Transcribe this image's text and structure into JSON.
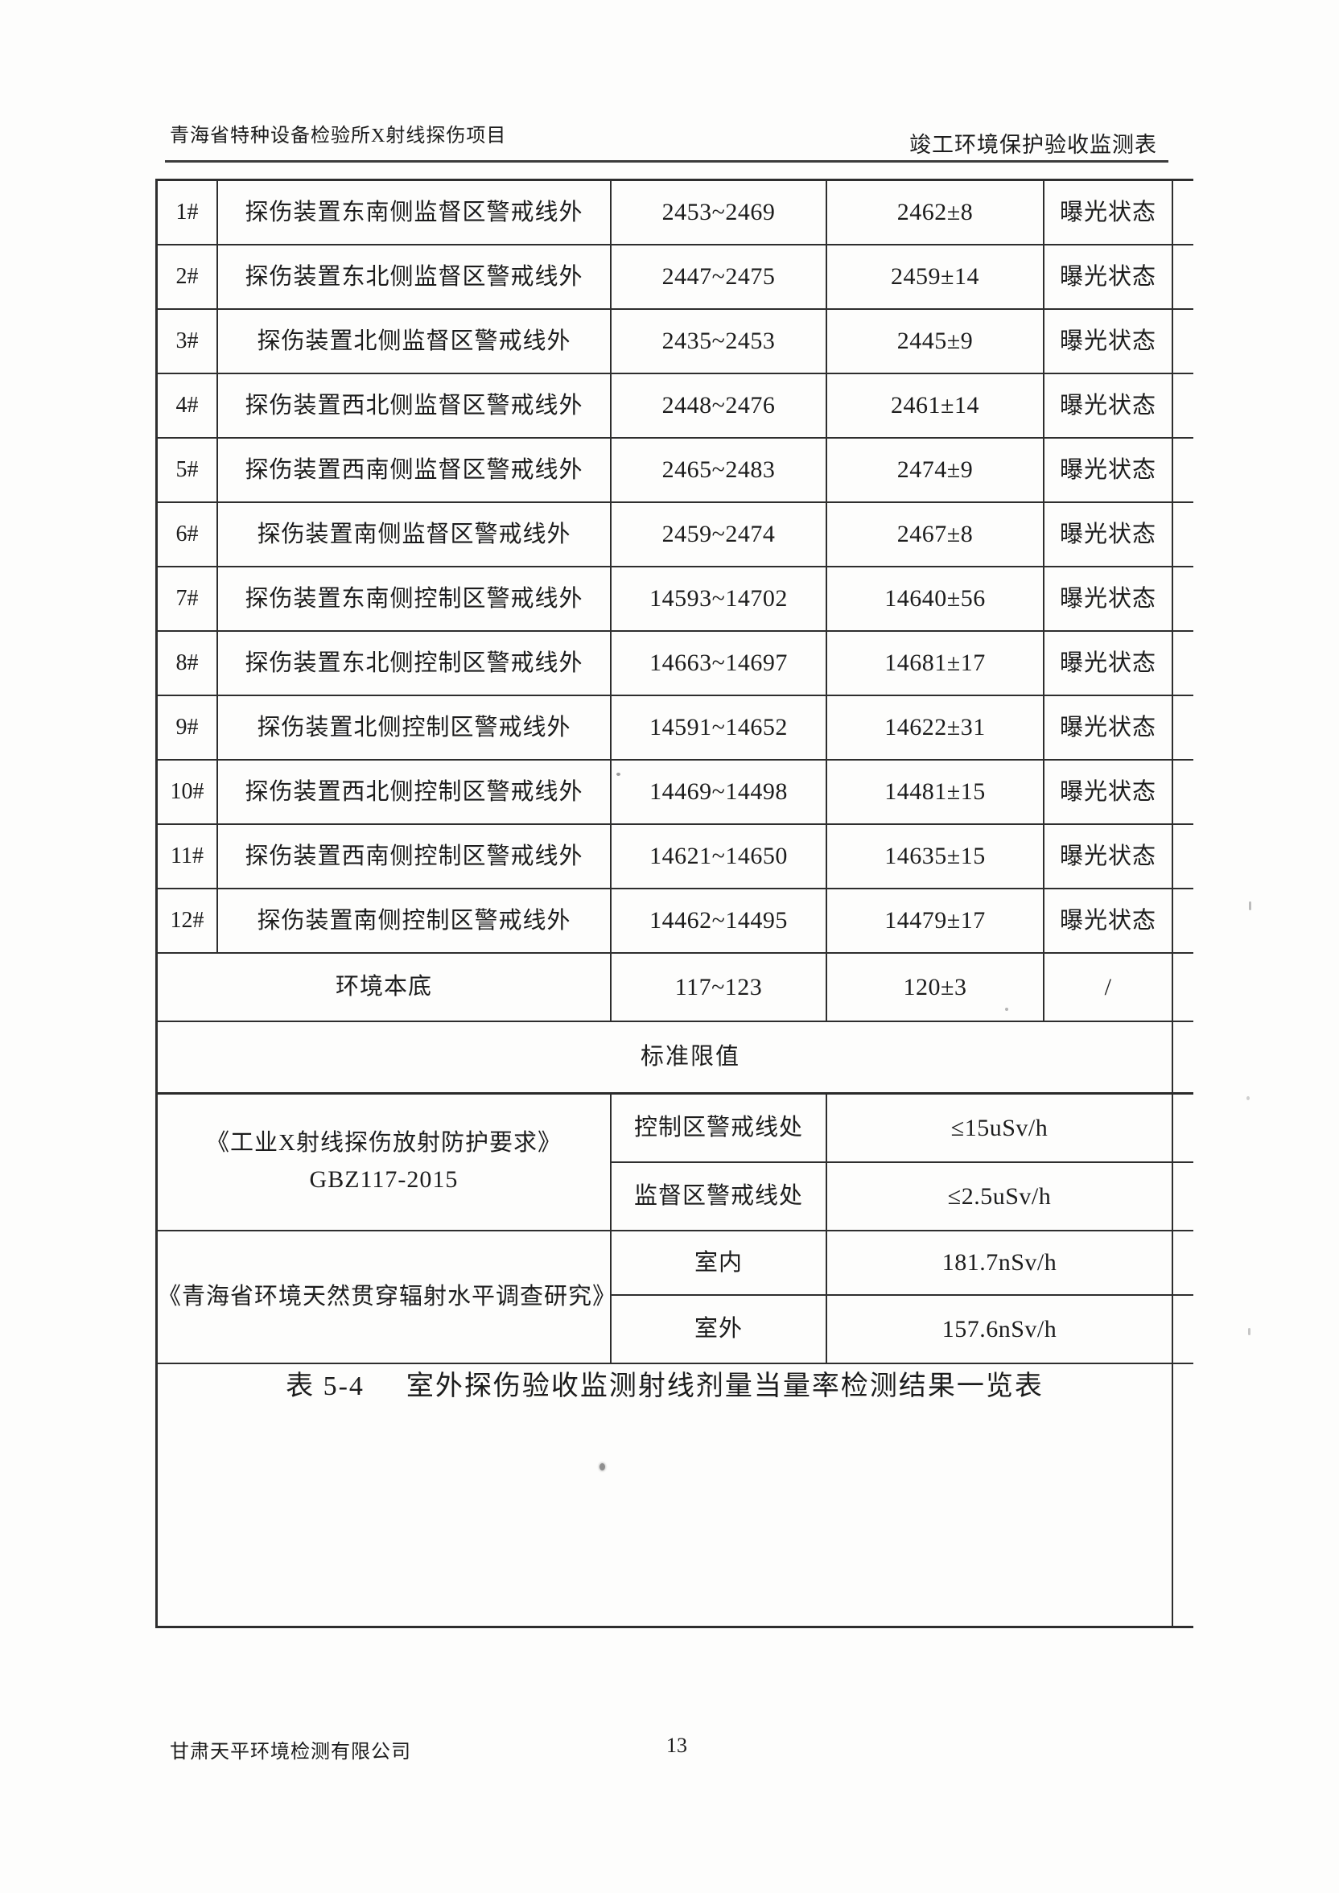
{
  "header": {
    "left_title": "青海省特种设备检验所X射线探伤项目",
    "right_title": "竣工环境保护验收监测表"
  },
  "table": {
    "rows": [
      {
        "id": "1#",
        "location": "探伤装置东南侧监督区警戒线外",
        "range": "2453~2469",
        "average": "2462±8",
        "status": "曝光状态"
      },
      {
        "id": "2#",
        "location": "探伤装置东北侧监督区警戒线外",
        "range": "2447~2475",
        "average": "2459±14",
        "status": "曝光状态"
      },
      {
        "id": "3#",
        "location": "探伤装置北侧监督区警戒线外",
        "range": "2435~2453",
        "average": "2445±9",
        "status": "曝光状态"
      },
      {
        "id": "4#",
        "location": "探伤装置西北侧监督区警戒线外",
        "range": "2448~2476",
        "average": "2461±14",
        "status": "曝光状态"
      },
      {
        "id": "5#",
        "location": "探伤装置西南侧监督区警戒线外",
        "range": "2465~2483",
        "average": "2474±9",
        "status": "曝光状态"
      },
      {
        "id": "6#",
        "location": "探伤装置南侧监督区警戒线外",
        "range": "2459~2474",
        "average": "2467±8",
        "status": "曝光状态"
      },
      {
        "id": "7#",
        "location": "探伤装置东南侧控制区警戒线外",
        "range": "14593~14702",
        "average": "14640±56",
        "status": "曝光状态"
      },
      {
        "id": "8#",
        "location": "探伤装置东北侧控制区警戒线外",
        "range": "14663~14697",
        "average": "14681±17",
        "status": "曝光状态"
      },
      {
        "id": "9#",
        "location": "探伤装置北侧控制区警戒线外",
        "range": "14591~14652",
        "average": "14622±31",
        "status": "曝光状态"
      },
      {
        "id": "10#",
        "location": "探伤装置西北侧控制区警戒线外",
        "range": "14469~14498",
        "average": "14481±15",
        "status": "曝光状态"
      },
      {
        "id": "11#",
        "location": "探伤装置西南侧控制区警戒线外",
        "range": "14621~14650",
        "average": "14635±15",
        "status": "曝光状态"
      },
      {
        "id": "12#",
        "location": "探伤装置南侧控制区警戒线外",
        "range": "14462~14495",
        "average": "14479±17",
        "status": "曝光状态"
      }
    ],
    "background_row": {
      "label": "环境本底",
      "range": "117~123",
      "average": "120±3",
      "status": "/"
    },
    "limits_header": "标准限值",
    "standard_gbz": {
      "name_line1": "《工业X射线探伤放射防护要求》",
      "name_line2": "GBZ117-2015",
      "entries": [
        {
          "label": "控制区警戒线处",
          "value": "≤15uSv/h"
        },
        {
          "label": "监督区警戒线处",
          "value": "≤2.5uSv/h"
        }
      ]
    },
    "standard_qinghai": {
      "name": "《青海省环境天然贯穿辐射水平调查研究》",
      "entries": [
        {
          "label": "室内",
          "value": "181.7nSv/h"
        },
        {
          "label": "室外",
          "value": "157.6nSv/h"
        }
      ]
    },
    "caption": {
      "label": "表 5-4",
      "text": "室外探伤验收监测射线剂量当量率检测结果一览表"
    }
  },
  "footer": {
    "company": "甘肃天平环境检测有限公司",
    "page_number": "13"
  }
}
